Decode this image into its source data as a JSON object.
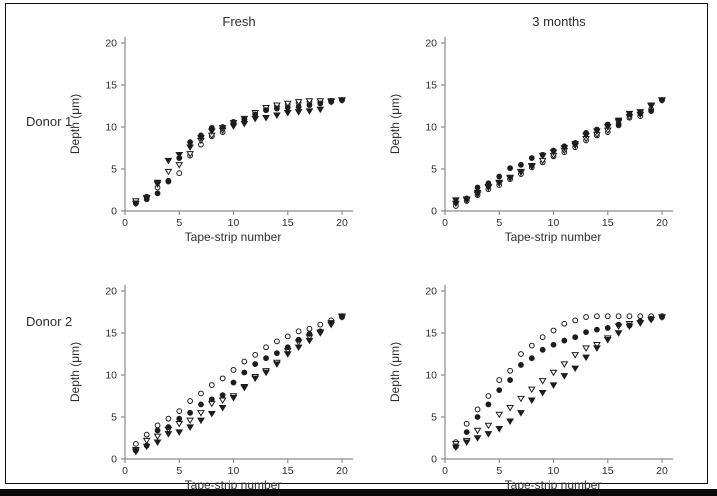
{
  "figure": {
    "column_titles": [
      "Fresh",
      "3 months"
    ],
    "row_labels": [
      "Donor 1",
      "Donor 2"
    ],
    "axis": {
      "xlabel": "Tape-strip number",
      "ylabel": "Depth (μm)",
      "xticks": [
        0,
        5,
        10,
        15,
        20
      ],
      "yticks": [
        0,
        5,
        10,
        15,
        20
      ],
      "xlim": [
        0,
        21
      ],
      "ylim": [
        0,
        20.7
      ],
      "grid": false,
      "legend": "none"
    },
    "colors": {
      "marker": "#1c1c1c",
      "marker_open_fill": "#ffffff",
      "axis_line": "#8c8c8c",
      "tick_text": "#2e2e2e",
      "frame": "#0f0f0f"
    }
  },
  "chart_data": [
    {
      "id": "donor1-fresh",
      "type": "scatter",
      "row_label": "Donor 1",
      "column_title": "Fresh",
      "x": [
        1,
        2,
        3,
        4,
        5,
        6,
        7,
        8,
        9,
        10,
        11,
        12,
        13,
        14,
        15,
        16,
        17,
        18,
        19,
        20
      ],
      "series": [
        {
          "name": "open-circle",
          "marker": "open-circle",
          "values": [
            1.1,
            1.7,
            2.8,
            3.5,
            4.5,
            6.6,
            7.9,
            8.9,
            9.4,
            10.4,
            10.9,
            11.6,
            12.2,
            12.5,
            12.7,
            12.9,
            13.0,
            13.0,
            13.1,
            13.2
          ]
        },
        {
          "name": "open-triangle-down",
          "marker": "open-triangle-down",
          "values": [
            1.2,
            1.6,
            3.2,
            4.7,
            5.5,
            6.8,
            8.4,
            9.0,
            9.6,
            10.5,
            11.0,
            11.7,
            12.3,
            12.6,
            12.8,
            13.0,
            13.1,
            13.1,
            13.1,
            13.2
          ]
        },
        {
          "name": "filled-circle",
          "marker": "filled-circle",
          "values": [
            0.9,
            1.4,
            2.1,
            3.6,
            6.3,
            8.2,
            9.0,
            9.9,
            10.0,
            10.6,
            10.9,
            11.5,
            12.0,
            12.2,
            12.3,
            12.4,
            12.6,
            12.8,
            13.0,
            13.2
          ]
        },
        {
          "name": "filled-triangle-down",
          "marker": "filled-triangle-down",
          "values": [
            0.9,
            1.5,
            3.4,
            6.0,
            6.7,
            7.6,
            8.7,
            9.5,
            9.9,
            10.1,
            10.4,
            11.0,
            11.1,
            11.4,
            11.7,
            11.8,
            11.9,
            12.1,
            13.0,
            13.2
          ]
        }
      ]
    },
    {
      "id": "donor1-3months",
      "type": "scatter",
      "row_label": "Donor 1",
      "column_title": "3 months",
      "x": [
        1,
        2,
        3,
        4,
        5,
        6,
        7,
        8,
        9,
        10,
        11,
        12,
        13,
        14,
        15,
        16,
        17,
        18,
        19,
        20
      ],
      "series": [
        {
          "name": "open-circle",
          "marker": "open-circle",
          "values": [
            0.6,
            1.2,
            1.9,
            2.6,
            3.1,
            3.8,
            4.4,
            5.2,
            5.8,
            6.5,
            7.0,
            7.6,
            8.4,
            9.0,
            9.4,
            10.4,
            11.1,
            11.3,
            12.1,
            13.2
          ]
        },
        {
          "name": "open-triangle-down",
          "marker": "open-triangle-down",
          "values": [
            0.9,
            1.3,
            2.0,
            2.8,
            3.3,
            3.9,
            4.6,
            5.3,
            6.0,
            6.6,
            7.2,
            7.8,
            8.6,
            9.1,
            9.6,
            10.6,
            11.2,
            11.5,
            12.5,
            13.2
          ]
        },
        {
          "name": "filled-circle",
          "marker": "filled-circle",
          "values": [
            1.0,
            1.5,
            2.8,
            3.3,
            4.1,
            5.1,
            5.5,
            6.3,
            6.7,
            7.2,
            7.7,
            8.1,
            9.3,
            9.7,
            10.3,
            10.2,
            11.5,
            11.6,
            11.9,
            13.2
          ]
        },
        {
          "name": "filled-triangle-down",
          "marker": "filled-triangle-down",
          "values": [
            1.3,
            1.4,
            2.2,
            2.9,
            3.4,
            4.0,
            4.7,
            5.4,
            6.6,
            7.0,
            7.5,
            8.0,
            9.0,
            9.5,
            10.0,
            10.8,
            11.6,
            11.8,
            12.6,
            13.2
          ]
        }
      ]
    },
    {
      "id": "donor2-fresh",
      "type": "scatter",
      "row_label": "Donor 2",
      "column_title": "Fresh",
      "x": [
        1,
        2,
        3,
        4,
        5,
        6,
        7,
        8,
        9,
        10,
        11,
        12,
        13,
        14,
        15,
        16,
        17,
        18,
        19,
        20
      ],
      "series": [
        {
          "name": "open-circle",
          "marker": "open-circle",
          "values": [
            1.8,
            2.9,
            4.0,
            4.8,
            5.7,
            6.9,
            7.8,
            8.8,
            9.6,
            10.6,
            11.6,
            12.4,
            13.3,
            14.0,
            14.6,
            15.2,
            15.5,
            16.0,
            16.5,
            17.0
          ]
        },
        {
          "name": "open-triangle-down",
          "marker": "open-triangle-down",
          "values": [
            1.1,
            2.2,
            2.7,
            3.5,
            4.2,
            4.6,
            5.5,
            6.6,
            7.0,
            7.5,
            8.6,
            9.8,
            10.5,
            11.5,
            12.9,
            13.9,
            14.5,
            15.1,
            16.2,
            17.0
          ]
        },
        {
          "name": "filled-circle",
          "marker": "filled-circle",
          "values": [
            1.0,
            1.6,
            3.4,
            3.8,
            4.8,
            5.5,
            6.5,
            7.1,
            7.6,
            9.1,
            10.3,
            11.3,
            12.0,
            12.6,
            13.3,
            14.2,
            14.9,
            15.2,
            16.2,
            16.9
          ]
        },
        {
          "name": "filled-triangle-down",
          "marker": "filled-triangle-down",
          "values": [
            0.9,
            1.5,
            2.0,
            3.0,
            3.2,
            3.8,
            4.6,
            5.4,
            6.1,
            7.3,
            8.5,
            9.6,
            10.3,
            11.3,
            12.5,
            13.3,
            14.1,
            15.0,
            16.0,
            16.9
          ]
        }
      ]
    },
    {
      "id": "donor2-3months",
      "type": "scatter",
      "row_label": "Donor 2",
      "column_title": "3 months",
      "x": [
        1,
        2,
        3,
        4,
        5,
        6,
        7,
        8,
        9,
        10,
        11,
        12,
        13,
        14,
        15,
        16,
        17,
        18,
        19,
        20
      ],
      "series": [
        {
          "name": "open-circle",
          "marker": "open-circle",
          "values": [
            2.0,
            4.2,
            5.9,
            7.5,
            9.4,
            10.5,
            12.5,
            13.5,
            14.5,
            15.3,
            16.1,
            16.5,
            16.9,
            17.0,
            17.0,
            17.0,
            17.0,
            17.0,
            17.0,
            17.0
          ]
        },
        {
          "name": "open-triangle-down",
          "marker": "open-triangle-down",
          "values": [
            1.8,
            2.2,
            3.4,
            4.0,
            5.3,
            6.1,
            7.2,
            8.3,
            9.3,
            10.3,
            11.3,
            12.4,
            13.2,
            13.6,
            14.4,
            15.8,
            16.1,
            16.2,
            16.6,
            16.9
          ]
        },
        {
          "name": "filled-circle",
          "marker": "filled-circle",
          "values": [
            1.5,
            3.2,
            5.0,
            6.5,
            8.2,
            9.4,
            11.2,
            12.0,
            13.0,
            13.6,
            14.1,
            14.5,
            15.1,
            15.4,
            15.6,
            16.0,
            15.9,
            16.4,
            16.7,
            16.9
          ]
        },
        {
          "name": "filled-triangle-down",
          "marker": "filled-triangle-down",
          "values": [
            1.4,
            2.0,
            2.5,
            3.0,
            3.6,
            4.5,
            5.5,
            7.0,
            7.9,
            8.8,
            9.9,
            10.8,
            12.1,
            13.2,
            14.2,
            15.0,
            15.8,
            16.2,
            16.6,
            16.9
          ]
        }
      ]
    }
  ]
}
